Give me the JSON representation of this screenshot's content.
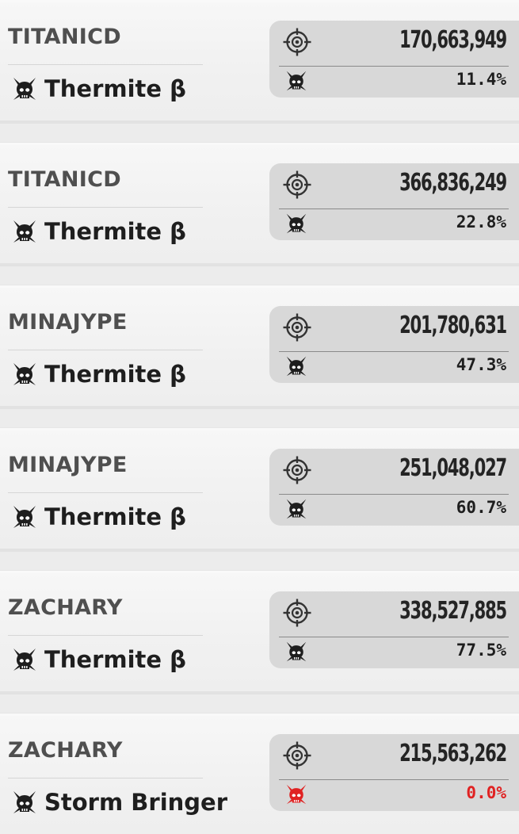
{
  "icons": {
    "boss": "skull-mask-icon",
    "target": "crosshair-target-icon"
  },
  "colors": {
    "boss_icon": "#1e1e1e",
    "boss_icon_zero": "#e02222",
    "percent_zero": "#e02222"
  },
  "entries": [
    {
      "player": "TITANICD",
      "boss": "Thermite β",
      "damage": "170,663,949",
      "percent": "11.4%",
      "zero": false
    },
    {
      "player": "TITANICD",
      "boss": "Thermite β",
      "damage": "366,836,249",
      "percent": "22.8%",
      "zero": false
    },
    {
      "player": "MINAJYPE",
      "boss": "Thermite β",
      "damage": "201,780,631",
      "percent": "47.3%",
      "zero": false
    },
    {
      "player": "MINAJYPE",
      "boss": "Thermite β",
      "damage": "251,048,027",
      "percent": "60.7%",
      "zero": false
    },
    {
      "player": "ZACHARY",
      "boss": "Thermite β",
      "damage": "338,527,885",
      "percent": "77.5%",
      "zero": false
    },
    {
      "player": "ZACHARY",
      "boss": "Storm Bringer",
      "damage": "215,563,262",
      "percent": "0.0%",
      "zero": true
    }
  ]
}
